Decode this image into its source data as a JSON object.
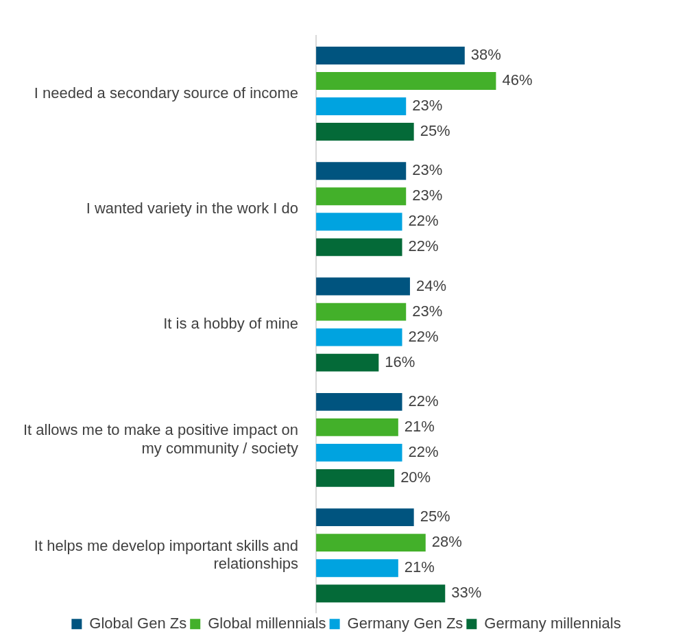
{
  "chart_data": {
    "type": "bar",
    "orientation": "horizontal",
    "legend": "bottom",
    "categories": [
      "I needed a secondary source of income",
      "I wanted variety in the work I do",
      "It is a hobby of mine",
      "It allows me to make a positive impact on my community / society",
      "It helps me develop important skills and relationships"
    ],
    "series": [
      {
        "name": "Global Gen Zs",
        "color": "#00547f",
        "values": [
          38,
          23,
          24,
          22,
          25
        ],
        "value_labels": [
          "38%",
          "23%",
          "24%",
          "22%",
          "25%"
        ]
      },
      {
        "name": "Global millennials",
        "color": "#43b02a",
        "values": [
          46,
          23,
          23,
          21,
          28
        ],
        "value_labels": [
          "46%",
          "23%",
          "23%",
          "21%",
          "28%"
        ]
      },
      {
        "name": "Germany Gen Zs",
        "color": "#00a3e0",
        "values": [
          23,
          22,
          22,
          22,
          21
        ],
        "value_labels": [
          "23%",
          "22%",
          "22%",
          "22%",
          "21%"
        ]
      },
      {
        "name": "Germany millennials",
        "color": "#046a38",
        "values": [
          25,
          22,
          16,
          20,
          33
        ],
        "value_labels": [
          "25%",
          "22%",
          "16%",
          "20%",
          "33%"
        ]
      }
    ]
  }
}
